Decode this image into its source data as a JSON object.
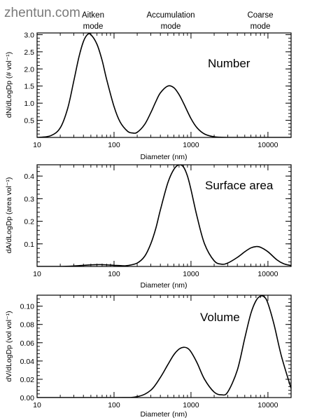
{
  "watermark": "zhentun.com",
  "mode_labels": [
    {
      "id": "aitken",
      "lines": [
        "Aitken",
        "mode"
      ]
    },
    {
      "id": "accumulation",
      "lines": [
        "Accumulation",
        "mode"
      ]
    },
    {
      "id": "coarse",
      "lines": [
        "Coarse",
        "mode"
      ]
    }
  ],
  "chart_data": [
    {
      "id": "number",
      "type": "line",
      "title": "Number",
      "xlabel": "Diameter (nm)",
      "ylabel": "dN/dLogDp (# vol⁻¹)",
      "xscale": "log",
      "xlim": [
        10,
        20000
      ],
      "ylim": [
        0,
        3.05
      ],
      "xticks": [
        10,
        100,
        1000,
        10000
      ],
      "xtick_labels": [
        "10",
        "100",
        "1000",
        "10000"
      ],
      "yticks": [
        0.5,
        1.0,
        1.5,
        2.0,
        2.5,
        3.0
      ],
      "ytick_labels": [
        "0.5",
        "1.0",
        "1.5",
        "2.0",
        "2.5",
        "3.0"
      ],
      "x": [
        10,
        15,
        20,
        25,
        30,
        35,
        40,
        45,
        50,
        60,
        70,
        80,
        100,
        120,
        150,
        175,
        200,
        250,
        300,
        350,
        400,
        500,
        600,
        700,
        800,
        1000,
        1200,
        1500,
        2000,
        3000,
        5000,
        10000,
        20000
      ],
      "y": [
        0.0,
        0.05,
        0.28,
        0.85,
        1.65,
        2.35,
        2.8,
        3.0,
        3.0,
        2.72,
        2.25,
        1.7,
        0.9,
        0.45,
        0.18,
        0.13,
        0.15,
        0.38,
        0.72,
        1.05,
        1.3,
        1.5,
        1.45,
        1.25,
        1.0,
        0.55,
        0.28,
        0.1,
        0.02,
        0.0,
        0.0,
        0.0,
        0.0
      ]
    },
    {
      "id": "surface",
      "type": "line",
      "title": "Surface area",
      "xlabel": "Diameter (nm)",
      "ylabel": "dA/dLogDp (area vol⁻¹)",
      "xscale": "log",
      "xlim": [
        10,
        20000
      ],
      "ylim": [
        0,
        0.45
      ],
      "xticks": [
        10,
        100,
        1000,
        10000
      ],
      "xtick_labels": [
        "10",
        "100",
        "1000",
        "10000"
      ],
      "yticks": [
        0.1,
        0.2,
        0.3,
        0.4
      ],
      "ytick_labels": [
        "0.1",
        "0.2",
        "0.3",
        "0.4"
      ],
      "x": [
        10,
        20,
        30,
        40,
        50,
        60,
        70,
        80,
        100,
        130,
        150,
        200,
        250,
        300,
        350,
        400,
        500,
        600,
        700,
        800,
        900,
        1000,
        1200,
        1500,
        2000,
        2500,
        3000,
        4000,
        5000,
        6000,
        7000,
        8000,
        10000,
        13000,
        16000,
        20000
      ],
      "y": [
        0.0,
        0.0,
        0.002,
        0.005,
        0.007,
        0.008,
        0.008,
        0.007,
        0.005,
        0.003,
        0.004,
        0.015,
        0.045,
        0.1,
        0.17,
        0.25,
        0.37,
        0.43,
        0.45,
        0.44,
        0.4,
        0.34,
        0.22,
        0.1,
        0.025,
        0.01,
        0.015,
        0.04,
        0.065,
        0.082,
        0.088,
        0.085,
        0.065,
        0.03,
        0.012,
        0.004
      ]
    },
    {
      "id": "volume",
      "type": "line",
      "title": "Volume",
      "xlabel": "Diameter (nm)",
      "ylabel": "dV/dLogDp (vol vol⁻¹)",
      "xscale": "log",
      "xlim": [
        10,
        20000
      ],
      "ylim": [
        0,
        0.112
      ],
      "xticks": [
        10,
        100,
        1000,
        10000
      ],
      "xtick_labels": [
        "10",
        "100",
        "1000",
        "10000"
      ],
      "yticks": [
        0.0,
        0.02,
        0.04,
        0.06,
        0.08,
        0.1
      ],
      "ytick_labels": [
        "0.00",
        "0.02",
        "0.04",
        "0.06",
        "0.08",
        "0.10"
      ],
      "x": [
        10,
        100,
        200,
        300,
        400,
        500,
        600,
        700,
        800,
        900,
        1000,
        1200,
        1500,
        2000,
        2500,
        3000,
        4000,
        5000,
        6000,
        7000,
        8000,
        9000,
        10000,
        12000,
        15000,
        20000
      ],
      "y": [
        0.0,
        0.0,
        0.001,
        0.008,
        0.022,
        0.036,
        0.047,
        0.053,
        0.055,
        0.054,
        0.05,
        0.038,
        0.02,
        0.006,
        0.003,
        0.006,
        0.03,
        0.065,
        0.092,
        0.106,
        0.111,
        0.11,
        0.103,
        0.08,
        0.045,
        0.01
      ]
    }
  ]
}
